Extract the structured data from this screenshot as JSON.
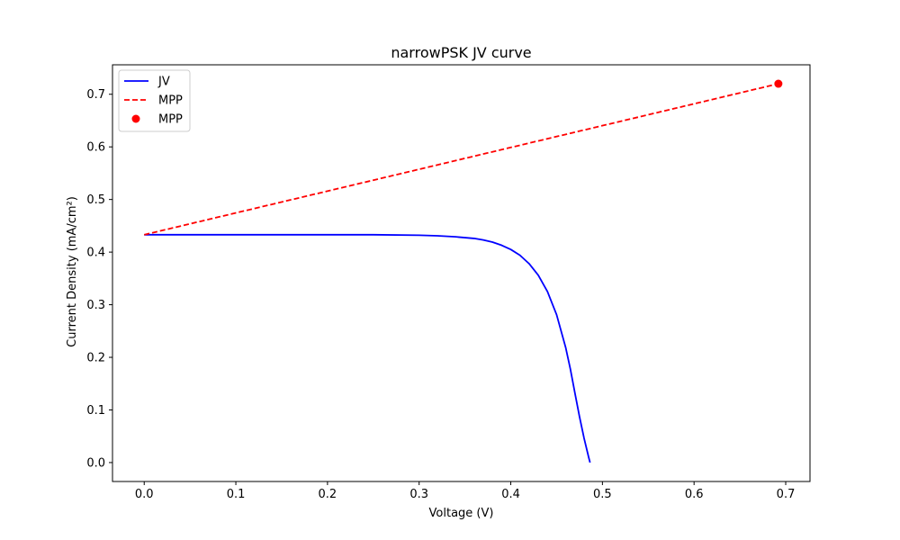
{
  "chart_data": {
    "type": "line",
    "title": "narrowPSK JV curve",
    "xlabel": "Voltage (V)",
    "ylabel": "Current Density (mA/cm²)",
    "xlim": [
      -0.0346,
      0.7265
    ],
    "ylim": [
      -0.036,
      0.756
    ],
    "xticks": [
      0.0,
      0.1,
      0.2,
      0.3,
      0.4,
      0.5,
      0.6,
      0.7
    ],
    "yticks": [
      0.0,
      0.1,
      0.2,
      0.3,
      0.4,
      0.5,
      0.6,
      0.7
    ],
    "xtick_labels": [
      "0.0",
      "0.1",
      "0.2",
      "0.3",
      "0.4",
      "0.5",
      "0.6",
      "0.7"
    ],
    "ytick_labels": [
      "0.0",
      "0.1",
      "0.2",
      "0.3",
      "0.4",
      "0.5",
      "0.6",
      "0.7"
    ],
    "grid": false,
    "legend_position": "top-left",
    "series": [
      {
        "name": "JV",
        "kind": "line",
        "color": "#0000ff",
        "x": [
          0.0,
          0.05,
          0.1,
          0.15,
          0.2,
          0.25,
          0.3,
          0.32,
          0.34,
          0.36,
          0.37,
          0.38,
          0.39,
          0.4,
          0.41,
          0.42,
          0.43,
          0.44,
          0.45,
          0.46,
          0.465,
          0.47,
          0.475,
          0.48,
          0.485,
          0.4865
        ],
        "y": [
          0.433,
          0.433,
          0.433,
          0.433,
          0.433,
          0.433,
          0.432,
          0.431,
          0.429,
          0.426,
          0.423,
          0.419,
          0.413,
          0.405,
          0.394,
          0.378,
          0.356,
          0.325,
          0.281,
          0.218,
          0.178,
          0.132,
          0.087,
          0.046,
          0.01,
          0.0
        ]
      },
      {
        "name": "MPP",
        "kind": "dashed-line",
        "color": "#ff0000",
        "x": [
          0.0,
          0.692
        ],
        "y": [
          0.433,
          0.72
        ]
      },
      {
        "name": "MPP",
        "kind": "marker",
        "color": "#ff0000",
        "x": [
          0.692
        ],
        "y": [
          0.72
        ]
      }
    ]
  }
}
